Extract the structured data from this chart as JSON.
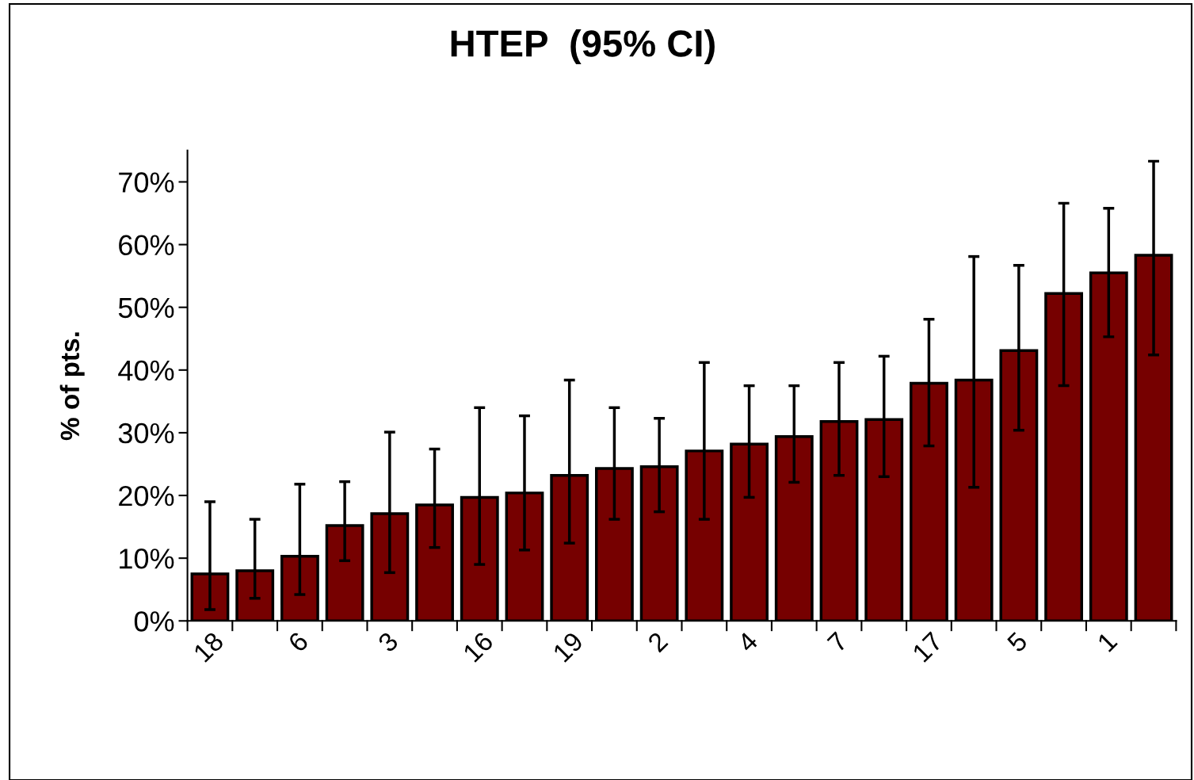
{
  "chart_data": {
    "type": "bar",
    "title": "HTEP  (95% CI)",
    "ylabel": "% of pts.",
    "categories": [
      "18",
      null,
      "6",
      null,
      "3",
      null,
      "16",
      null,
      "19",
      null,
      "2",
      null,
      "4",
      null,
      "7",
      null,
      "17",
      null,
      "5",
      null,
      "1",
      null
    ],
    "values": [
      7.5,
      8.0,
      10.3,
      15.2,
      17.1,
      18.5,
      19.7,
      20.4,
      23.2,
      24.3,
      24.6,
      27.1,
      28.2,
      29.4,
      31.8,
      32.1,
      37.9,
      38.4,
      43.1,
      52.2,
      55.5,
      58.3
    ],
    "errors": [
      [
        1.8,
        19.0
      ],
      [
        3.6,
        16.2
      ],
      [
        4.2,
        21.8
      ],
      [
        9.6,
        22.2
      ],
      [
        7.7,
        30.1
      ],
      [
        11.7,
        27.4
      ],
      [
        9.0,
        34.0
      ],
      [
        11.3,
        32.7
      ],
      [
        12.4,
        38.4
      ],
      [
        16.2,
        34.0
      ],
      [
        17.4,
        32.3
      ],
      [
        16.2,
        41.2
      ],
      [
        19.7,
        37.5
      ],
      [
        22.1,
        37.5
      ],
      [
        23.2,
        41.2
      ],
      [
        23.0,
        42.2
      ],
      [
        27.9,
        48.1
      ],
      [
        21.3,
        58.1
      ],
      [
        30.4,
        56.7
      ],
      [
        37.5,
        66.6
      ],
      [
        45.3,
        65.8
      ],
      [
        42.4,
        73.3
      ]
    ],
    "color": "#760000",
    "ylim": [
      0,
      75
    ],
    "yticks": [
      {
        "value": 0,
        "label": "0%"
      },
      {
        "value": 10,
        "label": "10%"
      },
      {
        "value": 20,
        "label": "20%"
      },
      {
        "value": 30,
        "label": "30%"
      },
      {
        "value": 40,
        "label": "40%"
      },
      {
        "value": 50,
        "label": "50%"
      },
      {
        "value": 60,
        "label": "60%"
      },
      {
        "value": 70,
        "label": "70%"
      }
    ],
    "grid": false,
    "legend": false
  }
}
